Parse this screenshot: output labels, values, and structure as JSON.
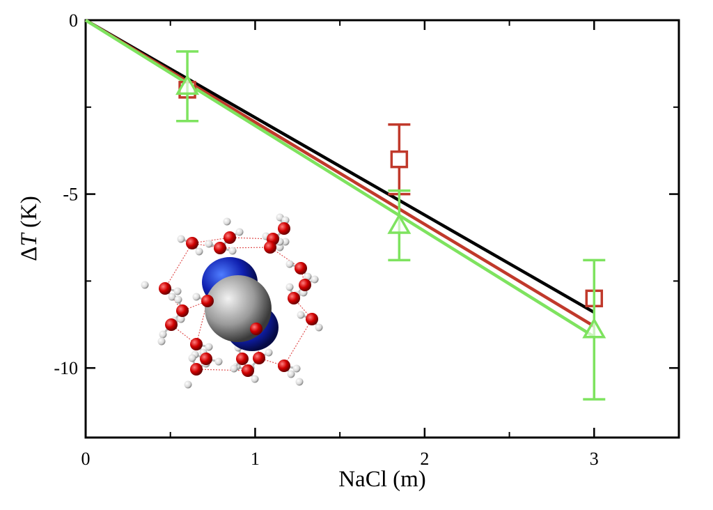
{
  "chart_data": {
    "type": "line",
    "title": "",
    "xlabel": "NaCl (m)",
    "ylabel_prefix": "ΔT",
    "ylabel_italic": "T",
    "ylabel_delta": "Δ",
    "ylabel_unit": " (K)",
    "xlim": [
      0,
      3.5
    ],
    "ylim": [
      -12,
      0
    ],
    "x_ticks": [
      0,
      1,
      2,
      3
    ],
    "x_tick_labels": [
      "0",
      "1",
      "2",
      "3"
    ],
    "y_ticks": [
      0,
      -5,
      -10
    ],
    "y_tick_labels": [
      "0",
      "-5",
      "-10"
    ],
    "x_minor_ticks": [
      0.5,
      1.5,
      2.5
    ],
    "y_minor_ticks": [
      -2.5,
      -7.5
    ],
    "grid": false,
    "legend": "none",
    "lines": [
      {
        "color": "#000000",
        "x": [
          0,
          3
        ],
        "y": [
          0,
          -8.4
        ]
      },
      {
        "color": "#c0392b",
        "x": [
          0,
          3
        ],
        "y": [
          0,
          -8.8
        ]
      },
      {
        "color": "#7ee35f",
        "x": [
          0,
          3
        ],
        "y": [
          0,
          -9.1
        ]
      }
    ],
    "points": [
      {
        "marker": "square",
        "color": "#c0392b",
        "x": [
          0.6,
          1.85,
          3.0
        ],
        "y": [
          -2.0,
          -4.0,
          -8.0
        ],
        "yerr": [
          0,
          1.0,
          0
        ]
      },
      {
        "marker": "triangle",
        "color": "#7ee35f",
        "x": [
          0.6,
          1.85,
          3.0
        ],
        "y": [
          -1.9,
          -5.9,
          -8.9
        ],
        "yerr": [
          1.0,
          1.0,
          2.0
        ]
      }
    ],
    "inset": "molecular-cage-illustration"
  }
}
